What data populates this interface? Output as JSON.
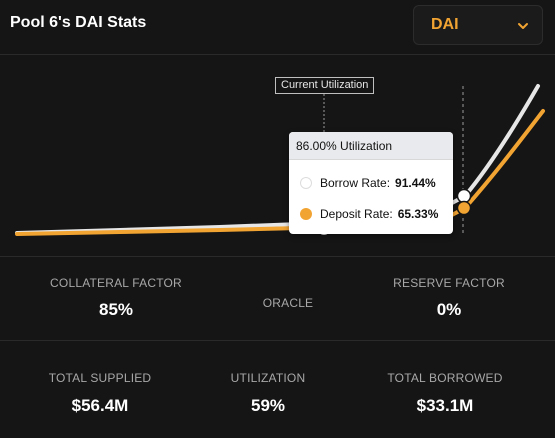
{
  "header": {
    "title": "Pool 6's DAI Stats",
    "asset_selected": "DAI",
    "chevron_icon": "chevron-down-icon"
  },
  "chart": {
    "current_utilization_label": "Current Utilization",
    "tooltip": {
      "title": "86.00% Utilization",
      "rows": [
        {
          "label": "Borrow Rate:",
          "value": "91.44%",
          "color": "#ffffff"
        },
        {
          "label": "Deposit Rate:",
          "value": "65.33%",
          "color": "#f2a432"
        }
      ]
    },
    "colors": {
      "borrow": "#e6e6e6",
      "deposit": "#f2a432"
    }
  },
  "stats_row1": {
    "collateral_factor_label": "COLLATERAL FACTOR",
    "collateral_factor_value": "85%",
    "oracle_label": "ORACLE",
    "reserve_factor_label": "RESERVE FACTOR",
    "reserve_factor_value": "0%"
  },
  "stats_row2": {
    "total_supplied_label": "TOTAL SUPPLIED",
    "total_supplied_value": "$56.4M",
    "utilization_label": "UTILIZATION",
    "utilization_value": "59%",
    "total_borrowed_label": "TOTAL BORROWED",
    "total_borrowed_value": "$33.1M"
  }
}
